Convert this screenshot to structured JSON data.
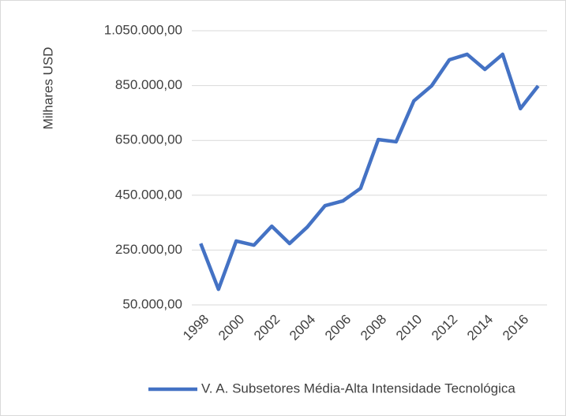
{
  "chart_data": {
    "type": "line",
    "y_label": "Milhares USD",
    "categories": [
      "1998",
      null,
      "2000",
      null,
      "2002",
      null,
      "2004",
      null,
      "2006",
      null,
      "2008",
      null,
      "2010",
      null,
      "2012",
      null,
      "2014",
      null,
      "2016",
      null
    ],
    "series": [
      {
        "name": "V. A. Subsetores Média-Alta Intensidade Tecnológica",
        "color": "#4472c4",
        "values": [
          274000,
          107000,
          283000,
          268000,
          337000,
          274000,
          334000,
          412000,
          429000,
          475000,
          653000,
          645000,
          794000,
          849000,
          944000,
          964000,
          909000,
          964000,
          766000,
          849000
        ]
      }
    ],
    "ylim": [
      50000,
      1050000
    ],
    "yticks": [
      {
        "value": 50000,
        "label": "50.000,00"
      },
      {
        "value": 250000,
        "label": "250.000,00"
      },
      {
        "value": 450000,
        "label": "450.000,00"
      },
      {
        "value": 650000,
        "label": "650.000,00"
      },
      {
        "value": 850000,
        "label": "850.000,00"
      },
      {
        "value": 1050000,
        "label": "1.050.000,00"
      }
    ],
    "grid": true
  }
}
